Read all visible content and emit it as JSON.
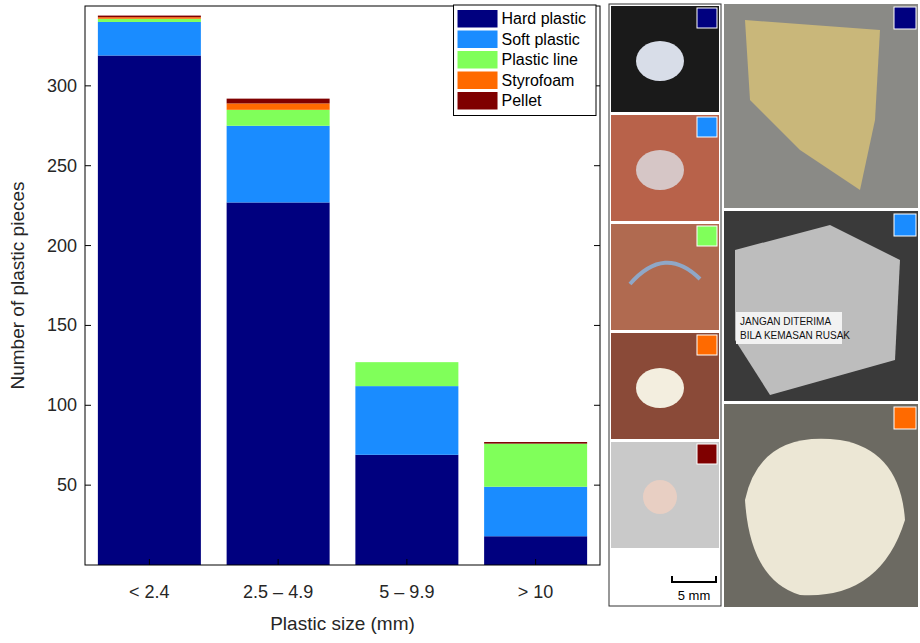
{
  "chart_data": {
    "type": "bar",
    "stacked": true,
    "xlabel": "Plastic size (mm)",
    "ylabel": "Number of plastic pieces",
    "categories": [
      "< 2.4",
      "2.5 – 4.9",
      "5 – 9.9",
      "> 10"
    ],
    "series": [
      {
        "name": "Hard plastic",
        "color": "#00007f",
        "values": [
          319,
          227,
          69,
          18
        ]
      },
      {
        "name": "Soft plastic",
        "color": "#1a8cff",
        "values": [
          21,
          48,
          43,
          31
        ]
      },
      {
        "name": "Plastic line",
        "color": "#80ff5a",
        "values": [
          2,
          10,
          15,
          27
        ]
      },
      {
        "name": "Styrofoam",
        "color": "#ff6a00",
        "values": [
          1,
          4,
          0,
          0
        ]
      },
      {
        "name": "Pellet",
        "color": "#7f0000",
        "values": [
          1,
          3,
          0,
          1
        ]
      }
    ],
    "ylim": [
      0,
      350
    ],
    "yticks": [
      50,
      100,
      150,
      200,
      250,
      300
    ],
    "legend": "upper right",
    "annotations": [
      "5 mm",
      "JANGAN DITERIMA",
      "BILA KEMASAN RUSAK"
    ]
  }
}
